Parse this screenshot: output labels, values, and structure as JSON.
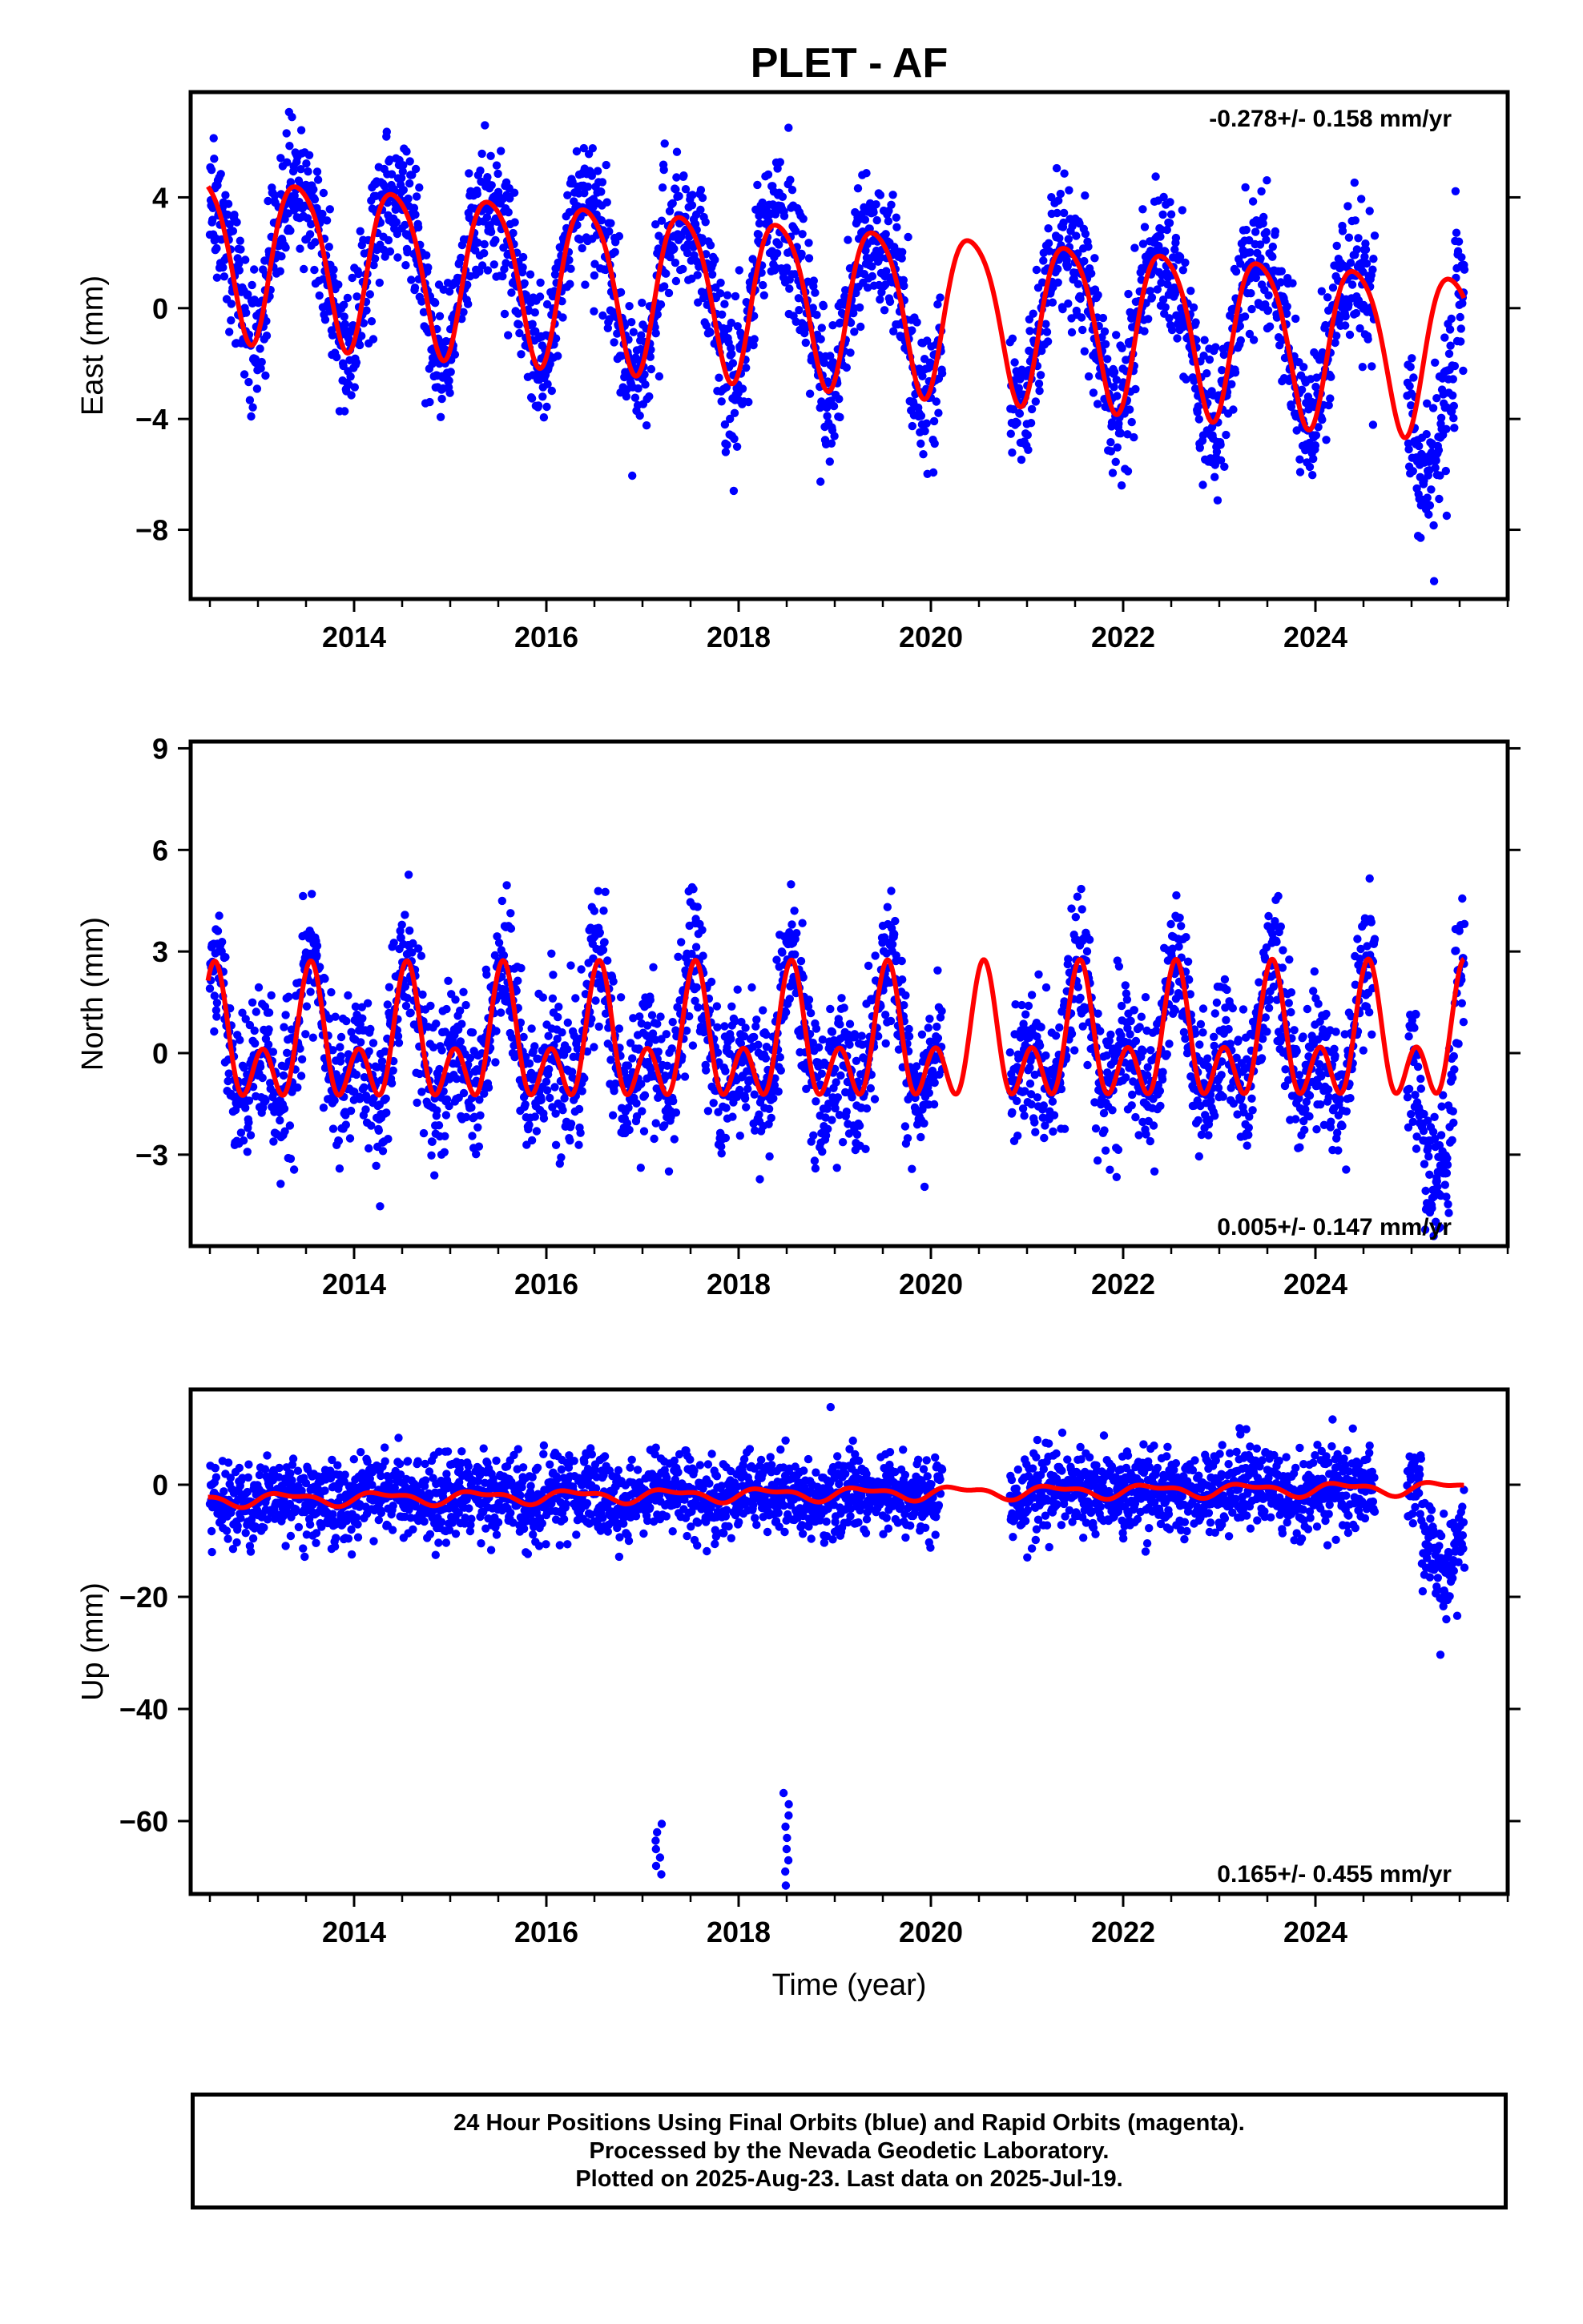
{
  "title": "PLET - AF",
  "colors": {
    "final_orbits": "#0000ff",
    "model": "#ff0000",
    "axes": "#000000"
  },
  "footer": {
    "line1": "24 Hour Positions Using Final Orbits (blue) and Rapid Orbits (magenta).",
    "line2": "Processed by the Nevada Geodetic Laboratory.",
    "line3": "Plotted on 2025-Aug-23. Last data on 2025-Jul-19."
  },
  "chart_data": [
    {
      "type": "scatter",
      "title": "PLET - AF",
      "xlabel": "",
      "ylabel": "East (mm)",
      "xlim": [
        2012.3,
        2026.0
      ],
      "ylim": [
        -10.5,
        7.8
      ],
      "xticks": [
        2014,
        2016,
        2018,
        2020,
        2022,
        2024
      ],
      "yticks": [
        -8,
        -4,
        0,
        4
      ],
      "rate_label": "-0.278+/- 0.158 mm/yr",
      "model": {
        "mean": 0.3,
        "rate": -0.278,
        "annual_amp": 2.9,
        "annual_peak": 0.42,
        "semi_amp": 0.45,
        "semi_peak": 0.2,
        "steps": [],
        "xrange": [
          2012.48,
          2025.55
        ]
      },
      "observations": {
        "start": 2012.5,
        "end": 2025.55,
        "gaps": [
          [
            2020.12,
            2020.82
          ],
          [
            2024.62,
            2024.95
          ]
        ],
        "scatter": 1.25,
        "drop": {
          "from": 2025.05,
          "to": 2025.45,
          "offset": -5.0
        }
      }
    },
    {
      "type": "scatter",
      "xlabel": "",
      "ylabel": "North (mm)",
      "xlim": [
        2012.3,
        2026.0
      ],
      "ylim": [
        -5.7,
        9.2
      ],
      "xticks": [
        2014,
        2016,
        2018,
        2020,
        2022,
        2024
      ],
      "yticks": [
        -3,
        0,
        3,
        6,
        9
      ],
      "rate_label": "0.005+/- 0.147 mm/yr",
      "model": {
        "mean": 0.2,
        "rate": 0.005,
        "annual_amp": 1.3,
        "annual_peak": 0.55,
        "semi_amp": 1.25,
        "semi_peak": 0.05,
        "steps": [],
        "xrange": [
          2012.48,
          2025.55
        ]
      },
      "observations": {
        "start": 2012.5,
        "end": 2025.55,
        "gaps": [
          [
            2020.12,
            2020.82
          ],
          [
            2024.62,
            2024.95
          ]
        ],
        "scatter": 1.05,
        "drop": {
          "from": 2025.05,
          "to": 2025.45,
          "offset": -3.0
        }
      }
    },
    {
      "type": "scatter",
      "xlabel": "Time (year)",
      "ylabel": "Up (mm)",
      "xlim": [
        2012.3,
        2026.0
      ],
      "ylim": [
        -73,
        17
      ],
      "xticks": [
        2014,
        2016,
        2018,
        2020,
        2022,
        2024
      ],
      "yticks": [
        -60,
        -40,
        -20,
        0
      ],
      "rate_label": "0.165+/- 0.455 mm/yr",
      "model": {
        "mean": -1.6,
        "rate": 0.165,
        "annual_amp": 1.0,
        "annual_peak": 0.3,
        "semi_amp": 0.5,
        "semi_peak": 0.1,
        "steps": [],
        "xrange": [
          2012.48,
          2025.55
        ]
      },
      "observations": {
        "start": 2012.5,
        "end": 2025.55,
        "gaps": [
          [
            2020.12,
            2020.82
          ],
          [
            2024.62,
            2024.95
          ]
        ],
        "scatter": 3.6,
        "drop": {
          "from": 2025.1,
          "to": 2025.55,
          "offset": -15.0
        },
        "outlier_clusters": [
          {
            "x": 2017.17,
            "y": [
              -60.5,
              -62,
              -63.5,
              -65,
              -66.5,
              -68,
              -69.5
            ]
          },
          {
            "x": 2018.5,
            "y": [
              -55,
              -57,
              -59,
              -61,
              -63,
              -65,
              -67,
              -69,
              -71.5
            ]
          }
        ]
      }
    }
  ]
}
